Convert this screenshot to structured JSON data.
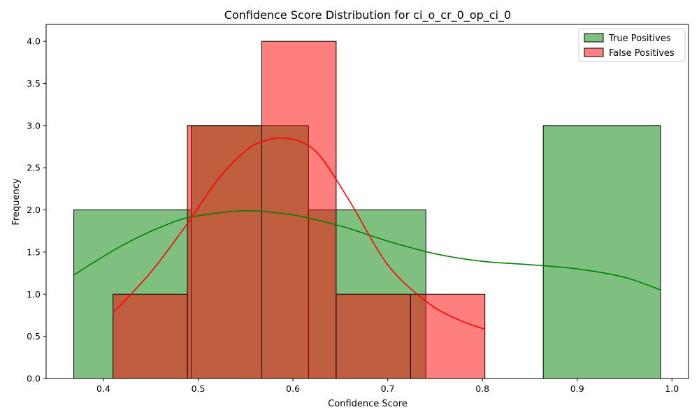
{
  "chart_data": {
    "type": "bar",
    "title": "Confidence Score Distribution for ci_o_cr_0_op_ci_0",
    "xlabel": "Confidence Score",
    "ylabel": "Frequency",
    "xlim": [
      0.3395,
      1.0175
    ],
    "ylim": [
      0,
      4.2
    ],
    "xticks": [
      0.4,
      0.5,
      0.6,
      0.7,
      0.8,
      0.9,
      1.0
    ],
    "xtick_labels": [
      "0.4",
      "0.5",
      "0.6",
      "0.7",
      "0.8",
      "0.9",
      "1.0"
    ],
    "yticks": [
      0.0,
      0.5,
      1.0,
      1.5,
      2.0,
      2.5,
      3.0,
      3.5,
      4.0
    ],
    "ytick_labels": [
      "0.0",
      "0.5",
      "1.0",
      "1.5",
      "2.0",
      "2.5",
      "3.0",
      "3.5",
      "4.0"
    ],
    "legend_position": "top-right",
    "series": [
      {
        "name": "True Positives",
        "color": "#008000",
        "fill_opacity": 0.5,
        "bins": [
          {
            "x0": 0.3687,
            "x1": 0.4926,
            "count": 2
          },
          {
            "x0": 0.4926,
            "x1": 0.6164,
            "count": 3
          },
          {
            "x0": 0.6164,
            "x1": 0.7403,
            "count": 2
          },
          {
            "x0": 0.7403,
            "x1": 0.8642,
            "count": 0
          },
          {
            "x0": 0.8642,
            "x1": 0.988,
            "count": 3
          }
        ],
        "kde": {
          "x": [
            0.369,
            0.42,
            0.47,
            0.5,
            0.55,
            0.6,
            0.65,
            0.7,
            0.75,
            0.8,
            0.85,
            0.9,
            0.95,
            0.988
          ],
          "y": [
            1.23,
            1.58,
            1.84,
            1.93,
            1.99,
            1.94,
            1.81,
            1.63,
            1.48,
            1.39,
            1.35,
            1.3,
            1.2,
            1.05
          ]
        }
      },
      {
        "name": "False Positives",
        "color": "#ff0000",
        "fill_opacity": 0.5,
        "bins": [
          {
            "x0": 0.4101,
            "x1": 0.4886,
            "count": 1
          },
          {
            "x0": 0.4886,
            "x1": 0.5671,
            "count": 3
          },
          {
            "x0": 0.5671,
            "x1": 0.6456,
            "count": 4
          },
          {
            "x0": 0.6456,
            "x1": 0.7241,
            "count": 1
          },
          {
            "x0": 0.7241,
            "x1": 0.8026,
            "count": 1
          }
        ],
        "kde": {
          "x": [
            0.41,
            0.45,
            0.49,
            0.52,
            0.55,
            0.57,
            0.59,
            0.61,
            0.63,
            0.66,
            0.7,
            0.74,
            0.77,
            0.803
          ],
          "y": [
            0.78,
            1.26,
            1.86,
            2.35,
            2.7,
            2.82,
            2.85,
            2.8,
            2.62,
            2.1,
            1.35,
            0.92,
            0.72,
            0.58
          ]
        }
      }
    ]
  }
}
